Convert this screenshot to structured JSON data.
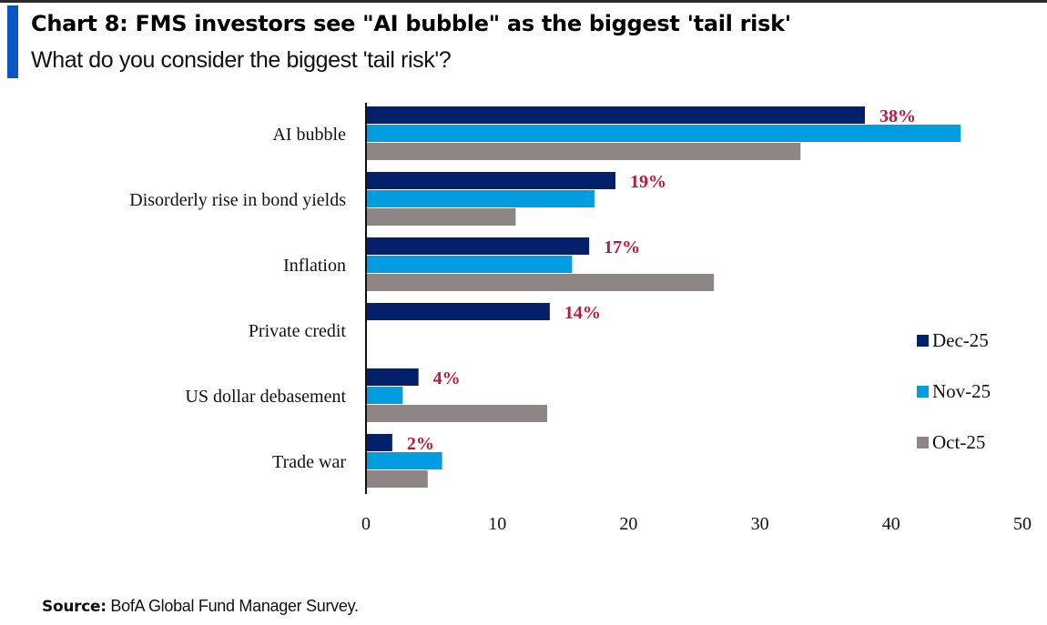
{
  "header": {
    "title": "Chart 8: FMS investors see \"AI bubble\" as the biggest 'tail risk'",
    "subtitle": "What do you consider the biggest 'tail risk'?"
  },
  "footer": {
    "source_label": "Source:",
    "source_text": "BofA Global Fund Manager Survey."
  },
  "chart_data": {
    "type": "bar",
    "orientation": "horizontal",
    "title": "Chart 8: FMS investors see \"AI bubble\" as the biggest 'tail risk'",
    "subtitle": "What do you consider the biggest 'tail risk'?",
    "xlabel": "",
    "ylabel": "",
    "xlim": [
      0,
      50
    ],
    "xticks": [
      0,
      10,
      20,
      30,
      40,
      50
    ],
    "grid": false,
    "legend_position": "right",
    "categories": [
      "AI bubble",
      "Disorderly rise in bond yields",
      "Inflation",
      "Private credit",
      "US dollar debasement",
      "Trade war"
    ],
    "series": [
      {
        "name": "Dec-25",
        "color": "#03206b",
        "values": [
          38,
          19,
          17,
          14,
          4,
          2
        ]
      },
      {
        "name": "Nov-25",
        "color": "#009ee0",
        "values": [
          45.3,
          17.4,
          15.7,
          null,
          2.8,
          5.8
        ]
      },
      {
        "name": "Oct-25",
        "color": "#8e8585",
        "values": [
          33.1,
          11.4,
          26.5,
          null,
          13.8,
          4.7
        ]
      }
    ],
    "data_labels": [
      "38%",
      "19%",
      "17%",
      "14%",
      "4%",
      "2%"
    ],
    "data_label_color": "#c0143c"
  }
}
